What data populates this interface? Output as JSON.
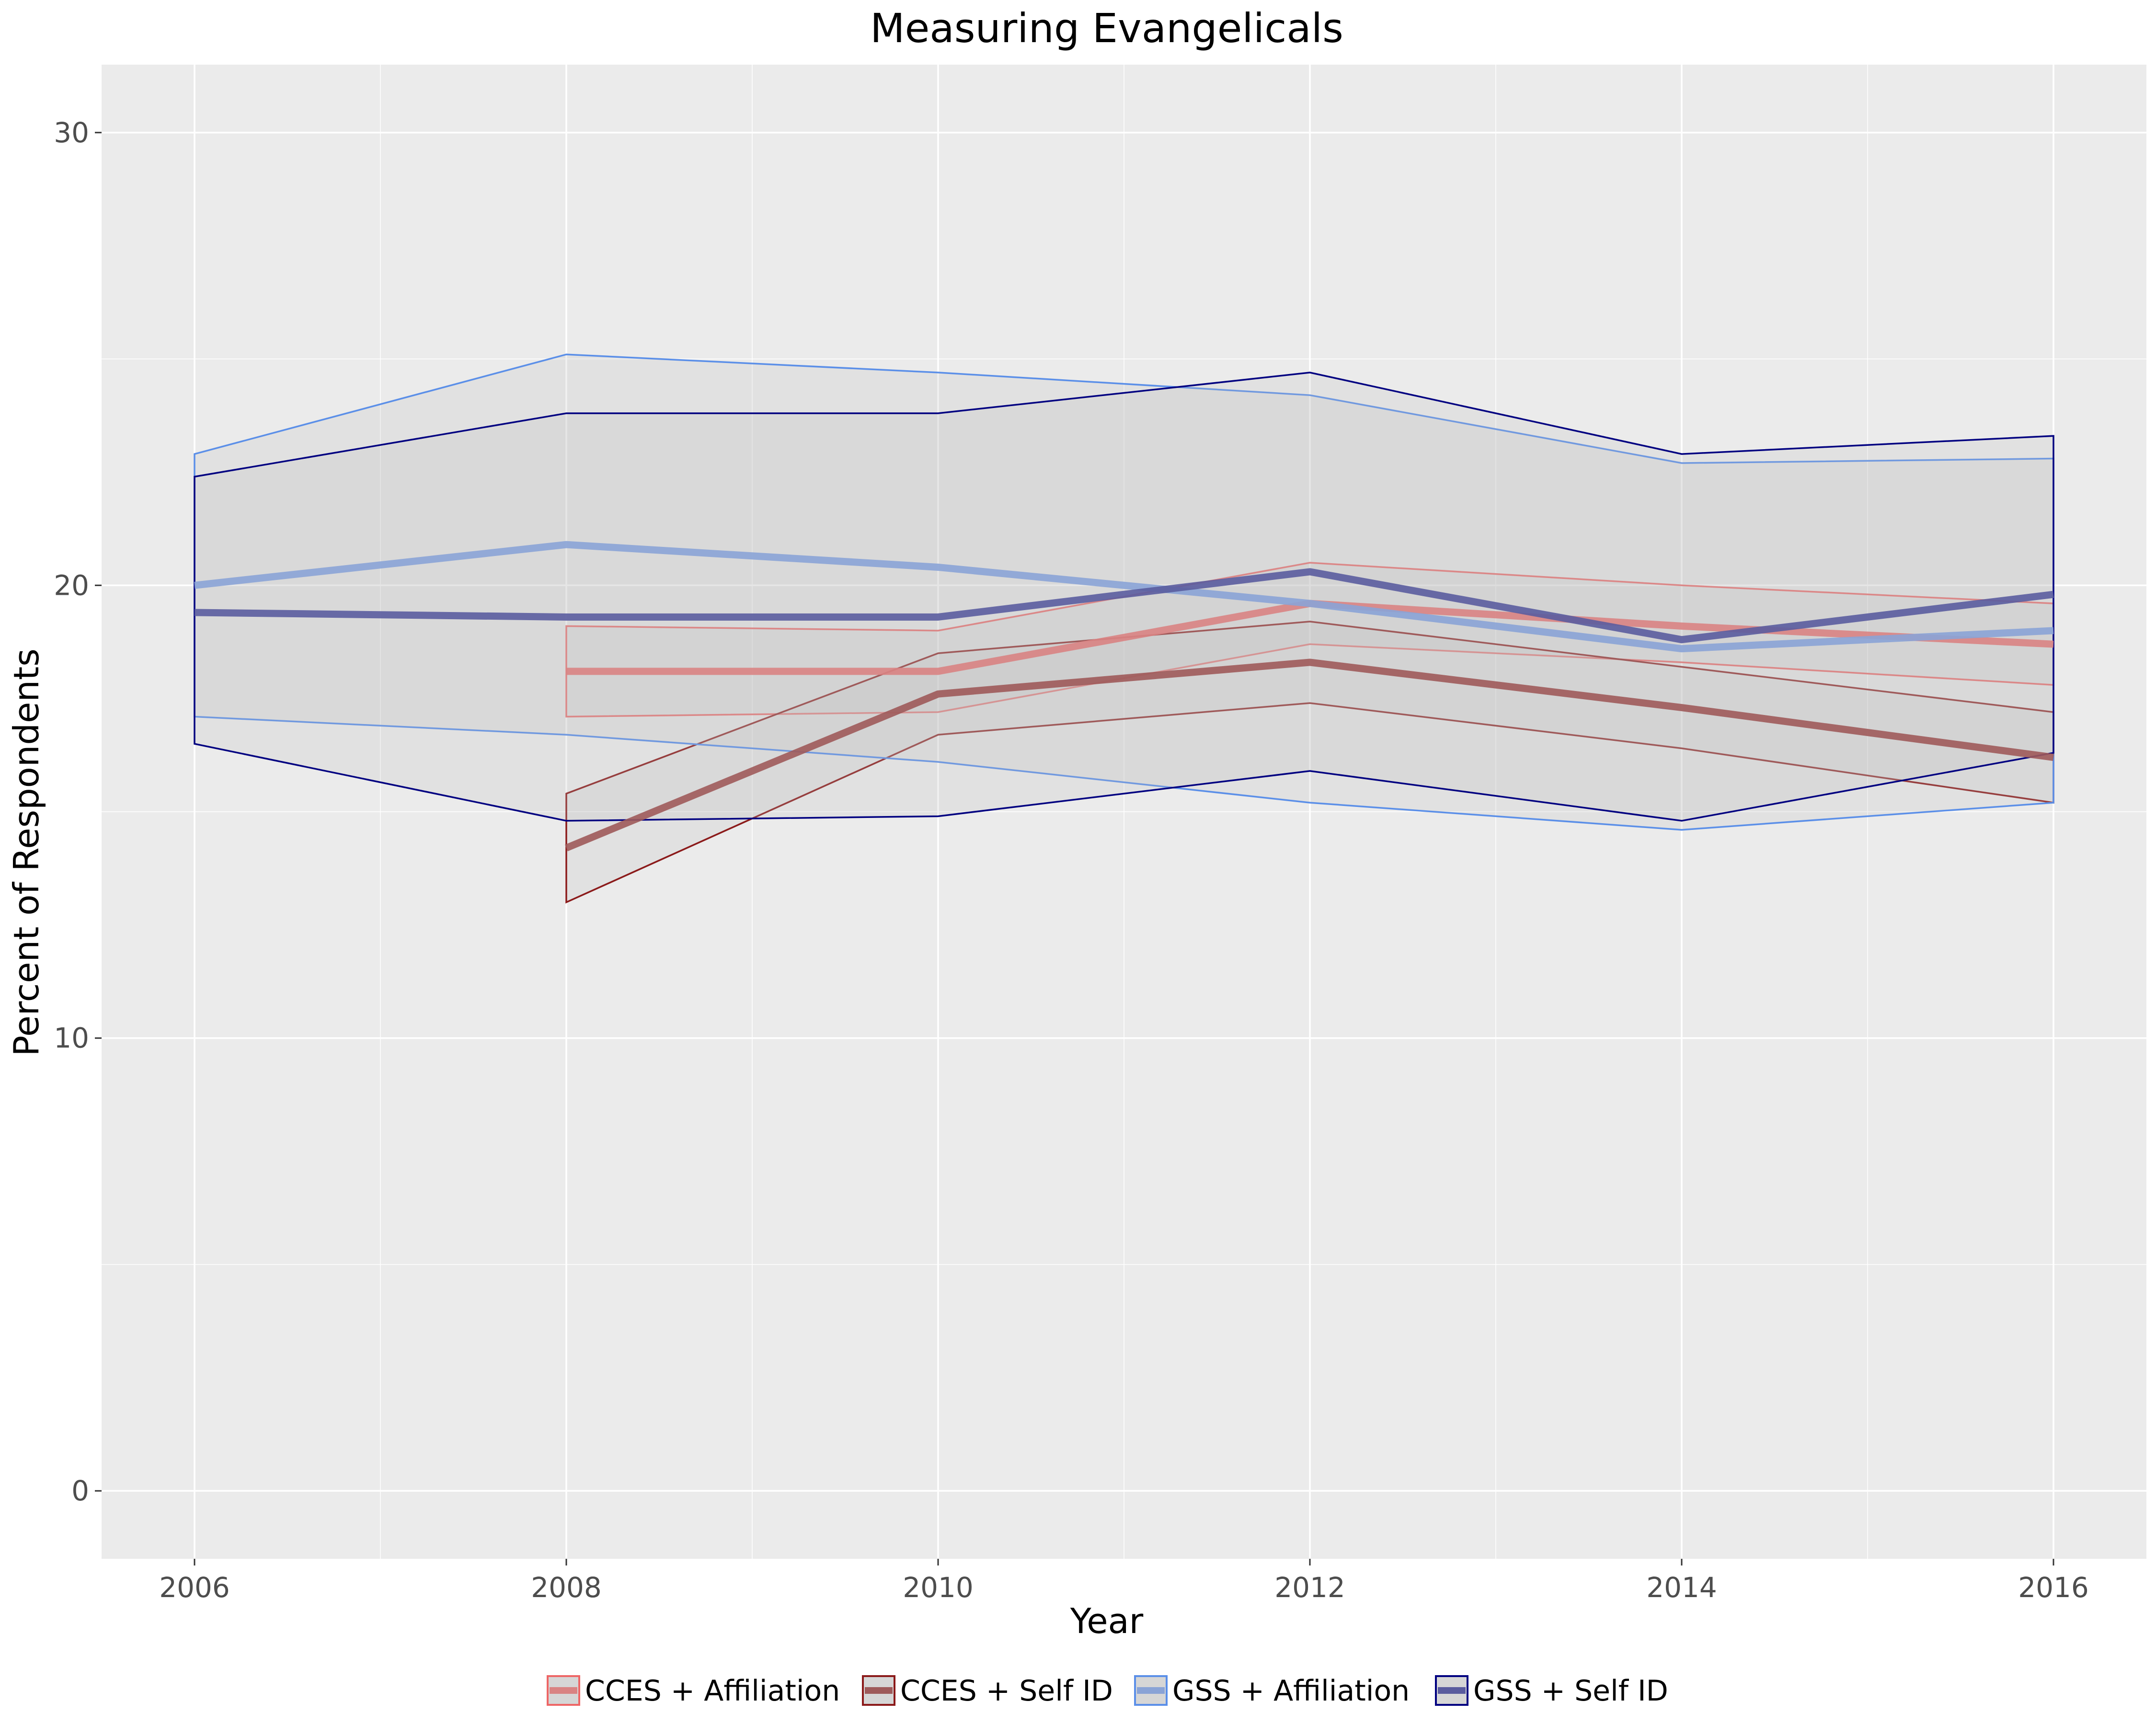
{
  "chart_data": {
    "type": "line",
    "title": "Measuring Evangelicals",
    "xlabel": "Year",
    "ylabel": "Percent of Respondents",
    "xlim": [
      2005.5,
      2016.5
    ],
    "ylim": [
      -1.5,
      31.5
    ],
    "x_ticks": [
      2006,
      2008,
      2010,
      2012,
      2014,
      2016
    ],
    "y_ticks": [
      0,
      10,
      20,
      30
    ],
    "grid": true,
    "legend_position": "bottom",
    "series": [
      {
        "name": "CCES + Affiliation",
        "line_color": "#d98383",
        "band_color": "#ee6666",
        "x": [
          2008,
          2010,
          2012,
          2014,
          2016
        ],
        "values": [
          18.1,
          18.1,
          19.6,
          19.1,
          18.7
        ],
        "lower": [
          17.1,
          17.2,
          18.7,
          18.3,
          17.8
        ],
        "upper": [
          19.1,
          19.0,
          20.5,
          20.0,
          19.6
        ]
      },
      {
        "name": "CCES + Self ID",
        "line_color": "#9e5a5a",
        "band_color": "#8b1a1a",
        "x": [
          2008,
          2010,
          2012,
          2014,
          2016
        ],
        "values": [
          14.2,
          17.6,
          18.3,
          17.3,
          16.2
        ],
        "lower": [
          13.0,
          16.7,
          17.4,
          16.4,
          15.2
        ],
        "upper": [
          15.4,
          18.5,
          19.2,
          18.2,
          17.2
        ]
      },
      {
        "name": "GSS + Affiliation",
        "line_color": "#8aa3d6",
        "band_color": "#5b8fe8",
        "x": [
          2006,
          2008,
          2010,
          2012,
          2014,
          2016
        ],
        "values": [
          20.0,
          20.9,
          20.4,
          19.6,
          18.6,
          19.0
        ],
        "lower": [
          17.1,
          16.7,
          16.1,
          15.2,
          14.6,
          15.2
        ],
        "upper": [
          22.9,
          25.1,
          24.7,
          24.2,
          22.7,
          22.8
        ]
      },
      {
        "name": "GSS + Self ID",
        "line_color": "#5a5c9e",
        "band_color": "#000080",
        "x": [
          2006,
          2008,
          2010,
          2012,
          2014,
          2016
        ],
        "values": [
          19.4,
          19.3,
          19.3,
          20.3,
          18.8,
          19.8
        ],
        "lower": [
          16.5,
          14.8,
          14.9,
          15.9,
          14.8,
          16.3
        ],
        "upper": [
          22.4,
          23.8,
          23.8,
          24.7,
          22.9,
          23.3
        ]
      }
    ]
  }
}
